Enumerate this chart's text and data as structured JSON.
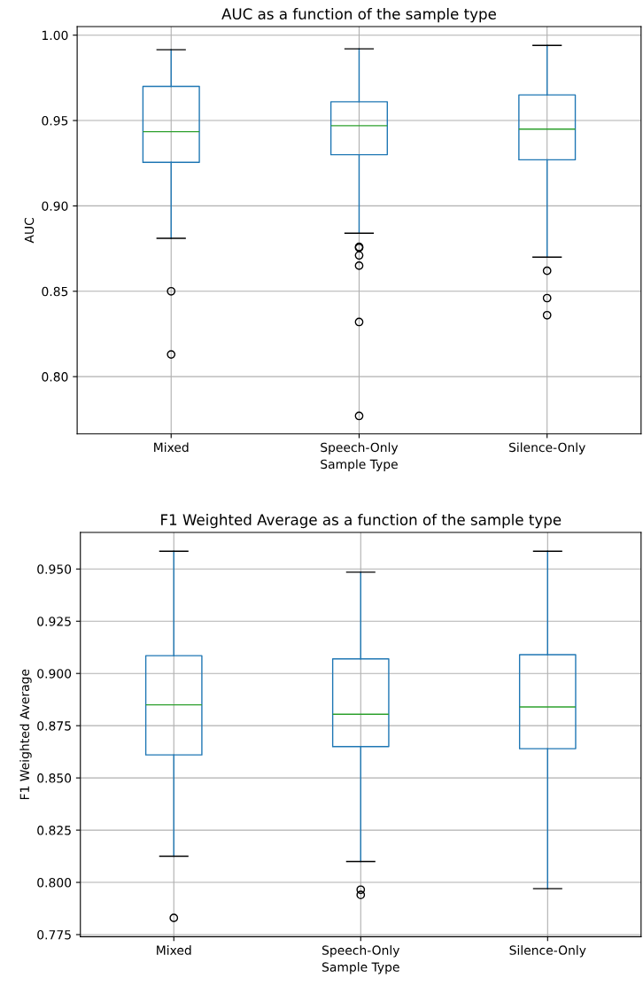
{
  "chart_data": [
    {
      "type": "box",
      "title": "AUC as a function of the sample type",
      "xlabel": "Sample Type",
      "ylabel": "AUC",
      "categories": [
        "Mixed",
        "Speech-Only",
        "Silence-Only"
      ],
      "color": "#1f77b4",
      "boxes": [
        {
          "low": 0.881,
          "q1": 0.9255,
          "median": 0.9435,
          "q3": 0.97,
          "high": 0.9915,
          "outliers": [
            0.85,
            0.813
          ]
        },
        {
          "low": 0.884,
          "q1": 0.93,
          "median": 0.947,
          "q3": 0.961,
          "high": 0.992,
          "outliers": [
            0.876,
            0.8755,
            0.871,
            0.865,
            0.832,
            0.777
          ]
        },
        {
          "low": 0.87,
          "q1": 0.927,
          "median": 0.945,
          "q3": 0.965,
          "high": 0.994,
          "outliers": [
            0.862,
            0.846,
            0.836
          ]
        }
      ],
      "ylim": [
        0.7665,
        1.005
      ],
      "yticks": [
        {
          "value": 0.8,
          "label": "0.80"
        },
        {
          "value": 0.85,
          "label": "0.85"
        },
        {
          "value": 0.9,
          "label": "0.90"
        },
        {
          "value": 0.95,
          "label": "0.95"
        },
        {
          "value": 1.0,
          "label": "1.00"
        }
      ],
      "grid": true,
      "legend": false
    },
    {
      "type": "box",
      "title": "F1 Weighted Average as a function of the sample type",
      "xlabel": "Sample Type",
      "ylabel": "F1 Weighted Average",
      "categories": [
        "Mixed",
        "Speech-Only",
        "Silence-Only"
      ],
      "color": "#1f77b4",
      "boxes": [
        {
          "low": 0.8125,
          "q1": 0.861,
          "median": 0.885,
          "q3": 0.9085,
          "high": 0.9585,
          "outliers": [
            0.783
          ]
        },
        {
          "low": 0.81,
          "q1": 0.865,
          "median": 0.8805,
          "q3": 0.907,
          "high": 0.9485,
          "outliers": [
            0.7965,
            0.794
          ]
        },
        {
          "low": 0.797,
          "q1": 0.864,
          "median": 0.884,
          "q3": 0.909,
          "high": 0.9585
        }
      ],
      "ylim": [
        0.774,
        0.9675
      ],
      "yticks": [
        {
          "value": 0.775,
          "label": "0.775"
        },
        {
          "value": 0.8,
          "label": "0.800"
        },
        {
          "value": 0.825,
          "label": "0.825"
        },
        {
          "value": 0.85,
          "label": "0.850"
        },
        {
          "value": 0.875,
          "label": "0.875"
        },
        {
          "value": 0.9,
          "label": "0.900"
        },
        {
          "value": 0.925,
          "label": "0.925"
        },
        {
          "value": 0.95,
          "label": "0.950"
        }
      ],
      "grid": true,
      "legend": false
    }
  ]
}
